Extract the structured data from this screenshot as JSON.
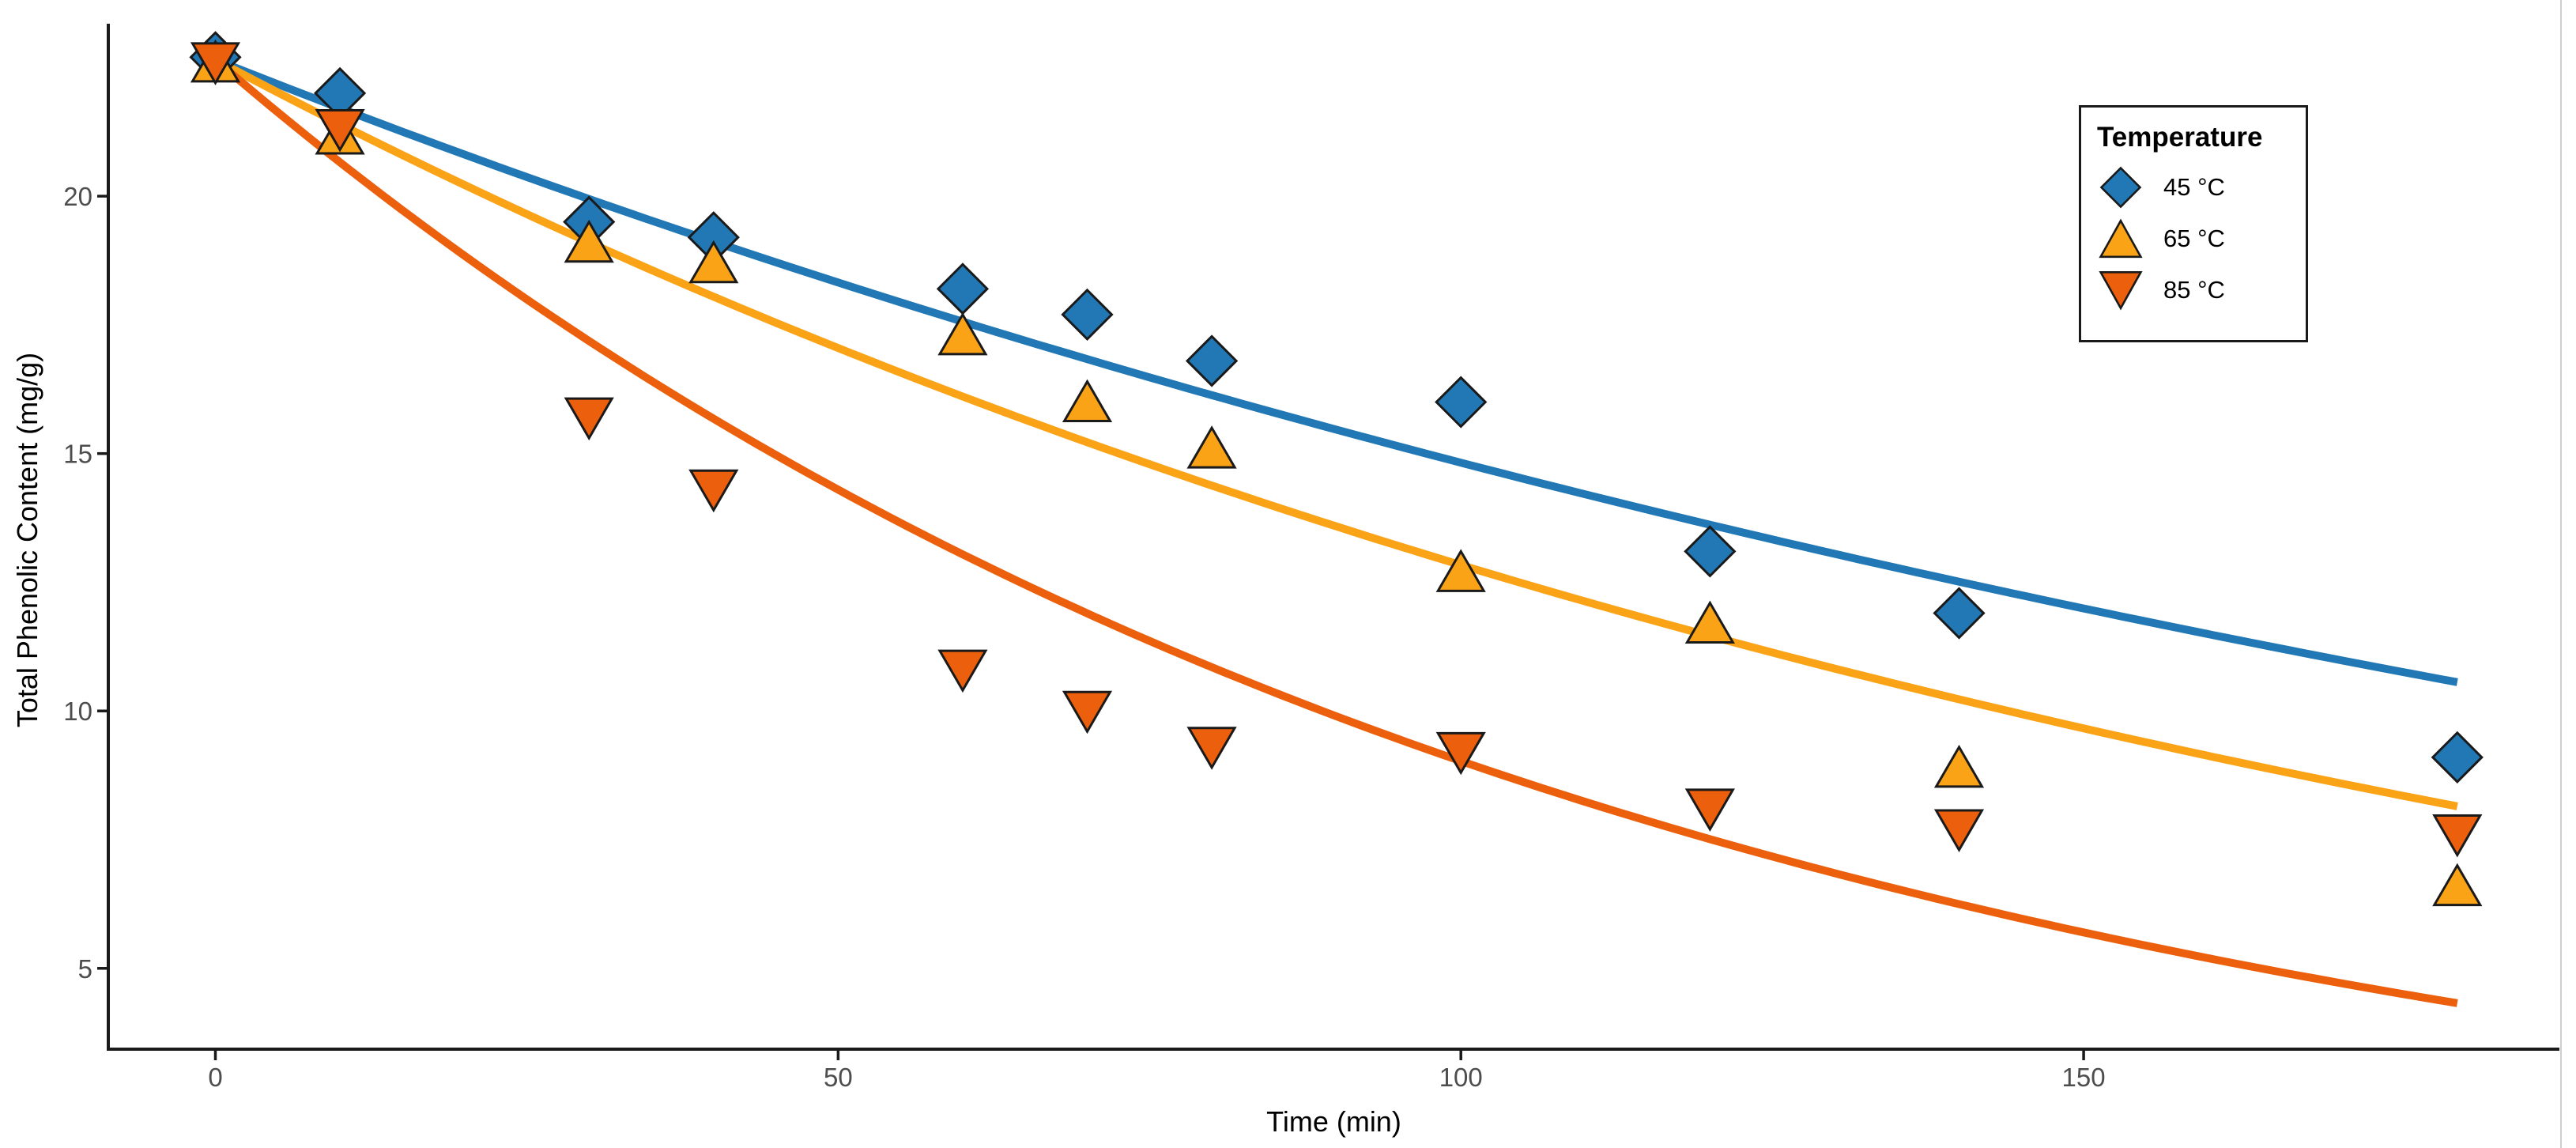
{
  "chart_data": {
    "type": "scatter",
    "title": "",
    "xlabel": "Time (min)",
    "ylabel": "Total Phenolic Content (mg/g)",
    "xlim": [
      -8.6,
      188.2
    ],
    "ylim": [
      3.43,
      23.35
    ],
    "x_ticks": [
      0,
      50,
      100,
      150
    ],
    "y_ticks": [
      5,
      10,
      15,
      20
    ],
    "grid": false,
    "legend_position": "top-right-inside",
    "axis_color": "#1a1a1a",
    "tick_label_color": "#4d4d4d",
    "marker_outline": "#1a1a1a",
    "x": [
      0,
      10,
      30,
      40,
      60,
      70,
      80,
      100,
      120,
      140,
      180
    ],
    "series": [
      {
        "name": "45C",
        "label": "45 °C",
        "color": "#2178B5",
        "marker": "diamond",
        "values": [
          22.7,
          22.0,
          19.5,
          19.2,
          18.2,
          17.7,
          16.8,
          16.0,
          13.1,
          11.9,
          9.1
        ],
        "fit": {
          "model": "first-order exponential decay",
          "C0": 22.65,
          "k_per_min": 0.00424
        }
      },
      {
        "name": "65C",
        "label": "65 °C",
        "color": "#FBA317",
        "marker": "triangle-up",
        "values": [
          22.6,
          21.2,
          19.1,
          18.7,
          17.3,
          16.0,
          15.1,
          12.7,
          11.7,
          8.9,
          6.6
        ],
        "fit": {
          "model": "first-order exponential decay",
          "C0": 22.65,
          "k_per_min": 0.00568
        }
      },
      {
        "name": "85C",
        "label": "85 °C",
        "color": "#EC5F0C",
        "marker": "triangle-down",
        "values": [
          22.6,
          21.3,
          15.7,
          14.3,
          10.8,
          10.0,
          9.3,
          9.2,
          8.1,
          7.7,
          7.6
        ],
        "fit": {
          "model": "first-order exponential decay",
          "C0": 22.65,
          "k_per_min": 0.0092
        }
      }
    ]
  },
  "legend": {
    "title": "Temperature"
  }
}
